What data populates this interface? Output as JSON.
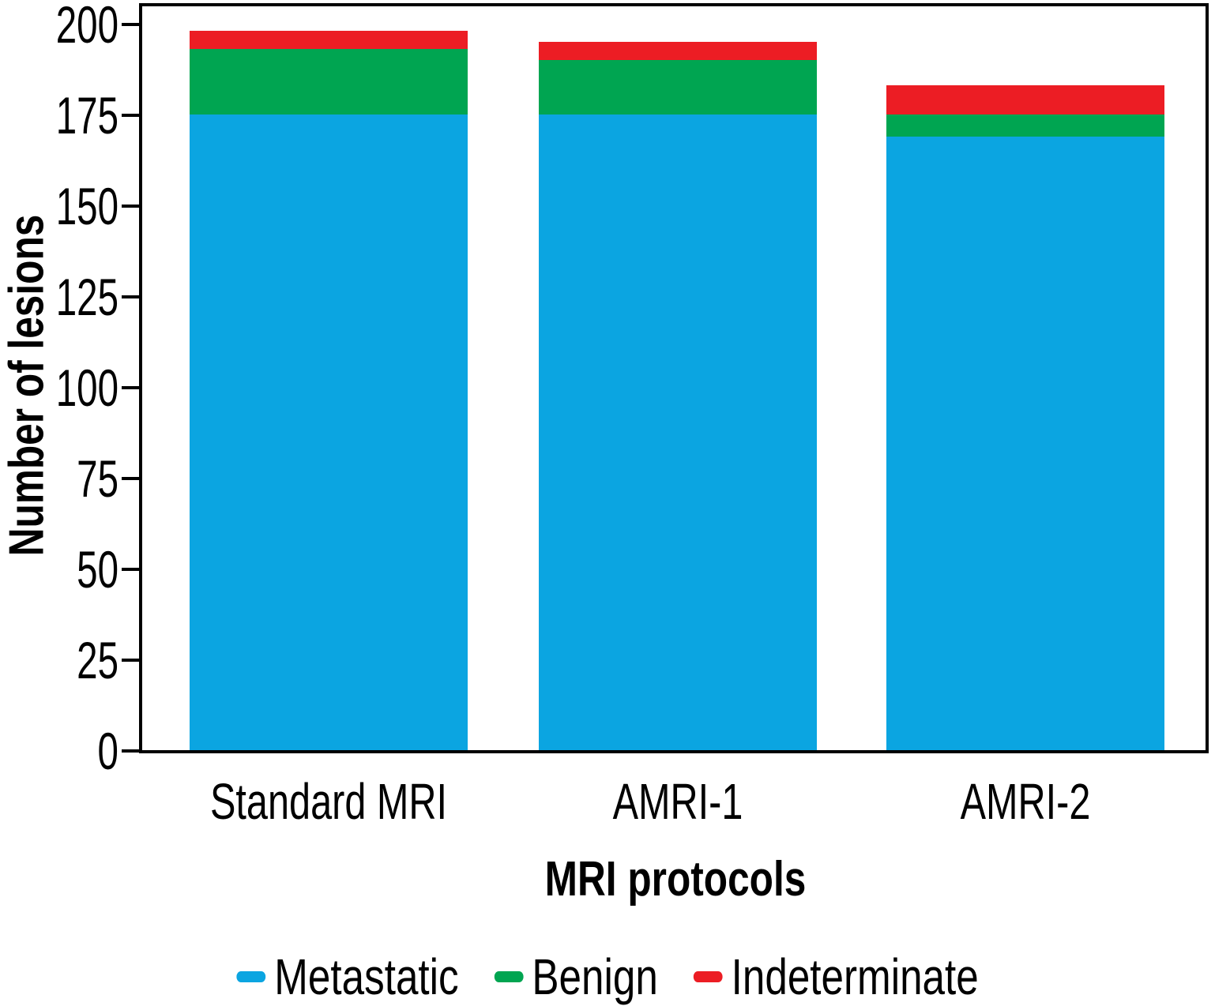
{
  "chart_data": {
    "type": "bar",
    "stacked": true,
    "xlabel": "MRI protocols",
    "ylabel": "Number of lesions",
    "categories": [
      "Standard MRI",
      "AMRI-1",
      "AMRI-2"
    ],
    "series": [
      {
        "name": "Metastatic",
        "color": "#0BA5E1",
        "values": [
          175,
          175,
          169
        ]
      },
      {
        "name": "Benign",
        "color": "#00A551",
        "values": [
          18,
          15,
          6
        ]
      },
      {
        "name": "Indeterminate",
        "color": "#EC1D24",
        "values": [
          5,
          5,
          8
        ]
      }
    ],
    "totals": [
      198,
      195,
      183
    ],
    "yticks": [
      0,
      25,
      50,
      75,
      100,
      125,
      150,
      175,
      200
    ],
    "ylim": [
      0,
      206
    ],
    "grid": false,
    "legend_position": "bottom",
    "frame": true
  },
  "colors": {
    "axis": "#000000",
    "text": "#000000",
    "background": "#ffffff"
  }
}
